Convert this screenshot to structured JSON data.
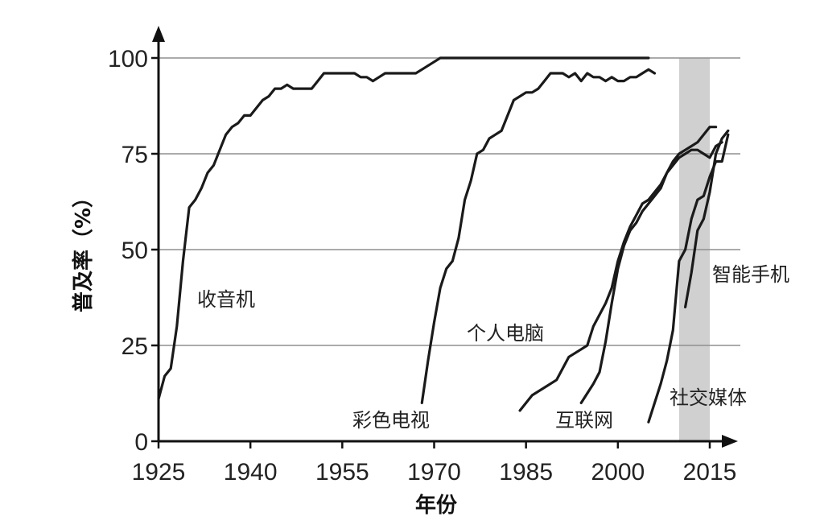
{
  "chart_data": {
    "type": "line",
    "xlabel": "年份",
    "ylabel": "普及率（%）",
    "xlim": [
      1925,
      2020
    ],
    "ylim": [
      0,
      100
    ],
    "xticks": [
      1925,
      1940,
      1955,
      1970,
      1985,
      2000,
      2015
    ],
    "yticks": [
      0,
      25,
      50,
      75,
      100
    ],
    "grid": "horizontal",
    "highlight_band": {
      "from": 2010,
      "to": 2015
    },
    "series": [
      {
        "name": "收音机",
        "points": [
          [
            1925,
            11
          ],
          [
            1926,
            17
          ],
          [
            1927,
            19
          ],
          [
            1928,
            30
          ],
          [
            1929,
            47
          ],
          [
            1930,
            61
          ],
          [
            1931,
            63
          ],
          [
            1932,
            66
          ],
          [
            1933,
            70
          ],
          [
            1934,
            72
          ],
          [
            1935,
            76
          ],
          [
            1936,
            80
          ],
          [
            1937,
            82
          ],
          [
            1938,
            83
          ],
          [
            1939,
            85
          ],
          [
            1940,
            85
          ],
          [
            1941,
            87
          ],
          [
            1942,
            89
          ],
          [
            1943,
            90
          ],
          [
            1944,
            92
          ],
          [
            1945,
            92
          ],
          [
            1946,
            93
          ],
          [
            1947,
            92
          ],
          [
            1948,
            92
          ],
          [
            1949,
            92
          ],
          [
            1950,
            92
          ],
          [
            1951,
            94
          ],
          [
            1952,
            96
          ],
          [
            1953,
            96
          ],
          [
            1955,
            96
          ],
          [
            1957,
            96
          ],
          [
            1958,
            95
          ],
          [
            1959,
            95
          ],
          [
            1960,
            94
          ],
          [
            1961,
            95
          ],
          [
            1962,
            96
          ],
          [
            1964,
            96
          ],
          [
            1966,
            96
          ],
          [
            1967,
            96
          ],
          [
            1968,
            97
          ],
          [
            1970,
            99
          ],
          [
            1971,
            100
          ],
          [
            1975,
            100
          ],
          [
            1985,
            100
          ],
          [
            1995,
            100
          ],
          [
            2005,
            100
          ]
        ]
      },
      {
        "name": "彩色电视",
        "points": [
          [
            1968,
            10
          ],
          [
            1969,
            21
          ],
          [
            1970,
            31
          ],
          [
            1971,
            40
          ],
          [
            1972,
            45
          ],
          [
            1973,
            47
          ],
          [
            1974,
            53
          ],
          [
            1975,
            63
          ],
          [
            1976,
            68
          ],
          [
            1977,
            75
          ],
          [
            1978,
            76
          ],
          [
            1979,
            79
          ],
          [
            1980,
            80
          ],
          [
            1981,
            81
          ],
          [
            1982,
            85
          ],
          [
            1983,
            89
          ],
          [
            1984,
            90
          ],
          [
            1985,
            91
          ],
          [
            1986,
            91
          ],
          [
            1987,
            92
          ],
          [
            1988,
            94
          ],
          [
            1989,
            96
          ],
          [
            1990,
            96
          ],
          [
            1991,
            96
          ],
          [
            1992,
            95
          ],
          [
            1993,
            96
          ],
          [
            1994,
            94
          ],
          [
            1995,
            96
          ],
          [
            1996,
            95
          ],
          [
            1997,
            95
          ],
          [
            1998,
            94
          ],
          [
            1999,
            95
          ],
          [
            2000,
            94
          ],
          [
            2001,
            94
          ],
          [
            2002,
            95
          ],
          [
            2003,
            95
          ],
          [
            2004,
            96
          ],
          [
            2005,
            97
          ],
          [
            2006,
            96
          ]
        ]
      },
      {
        "name": "个人电脑",
        "points": [
          [
            1984,
            8
          ],
          [
            1986,
            12
          ],
          [
            1988,
            14
          ],
          [
            1990,
            16
          ],
          [
            1992,
            22
          ],
          [
            1994,
            24
          ],
          [
            1995,
            25
          ],
          [
            1996,
            30
          ],
          [
            1998,
            36
          ],
          [
            1999,
            40
          ],
          [
            2000,
            47
          ],
          [
            2001,
            52
          ],
          [
            2002,
            56
          ],
          [
            2003,
            59
          ],
          [
            2004,
            62
          ],
          [
            2005,
            63
          ],
          [
            2006,
            65
          ],
          [
            2007,
            67
          ],
          [
            2008,
            70
          ],
          [
            2009,
            72
          ],
          [
            2010,
            74
          ],
          [
            2011,
            75
          ],
          [
            2012,
            76
          ],
          [
            2013,
            76
          ],
          [
            2014,
            75
          ],
          [
            2015,
            74
          ],
          [
            2016,
            77
          ],
          [
            2017,
            78
          ]
        ]
      },
      {
        "name": "互联网",
        "points": [
          [
            1994,
            10
          ],
          [
            1996,
            15
          ],
          [
            1997,
            18
          ],
          [
            1998,
            26
          ],
          [
            1999,
            36
          ],
          [
            2000,
            45
          ],
          [
            2001,
            51
          ],
          [
            2002,
            55
          ],
          [
            2003,
            57
          ],
          [
            2004,
            60
          ],
          [
            2005,
            62
          ],
          [
            2006,
            64
          ],
          [
            2007,
            66
          ],
          [
            2008,
            70
          ],
          [
            2009,
            73
          ],
          [
            2010,
            75
          ],
          [
            2011,
            76
          ],
          [
            2012,
            77
          ],
          [
            2013,
            78
          ],
          [
            2014,
            80
          ],
          [
            2015,
            82
          ],
          [
            2016,
            82
          ]
        ]
      },
      {
        "name": "社交媒体",
        "points": [
          [
            2005,
            5
          ],
          [
            2006,
            10
          ],
          [
            2007,
            15
          ],
          [
            2008,
            21
          ],
          [
            2009,
            29
          ],
          [
            2010,
            47
          ],
          [
            2011,
            50
          ],
          [
            2012,
            58
          ],
          [
            2013,
            63
          ],
          [
            2014,
            64
          ],
          [
            2015,
            69
          ],
          [
            2016,
            73
          ],
          [
            2017,
            73
          ],
          [
            2018,
            80
          ]
        ]
      },
      {
        "name": "智能手机",
        "points": [
          [
            2011,
            35
          ],
          [
            2012,
            44
          ],
          [
            2013,
            55
          ],
          [
            2014,
            58
          ],
          [
            2015,
            65
          ],
          [
            2016,
            75
          ],
          [
            2017,
            79
          ],
          [
            2018,
            81
          ]
        ]
      }
    ],
    "annotations": [
      "收音机",
      "彩色电视",
      "个人电脑",
      "互联网",
      "社交媒体",
      "智能手机"
    ]
  }
}
